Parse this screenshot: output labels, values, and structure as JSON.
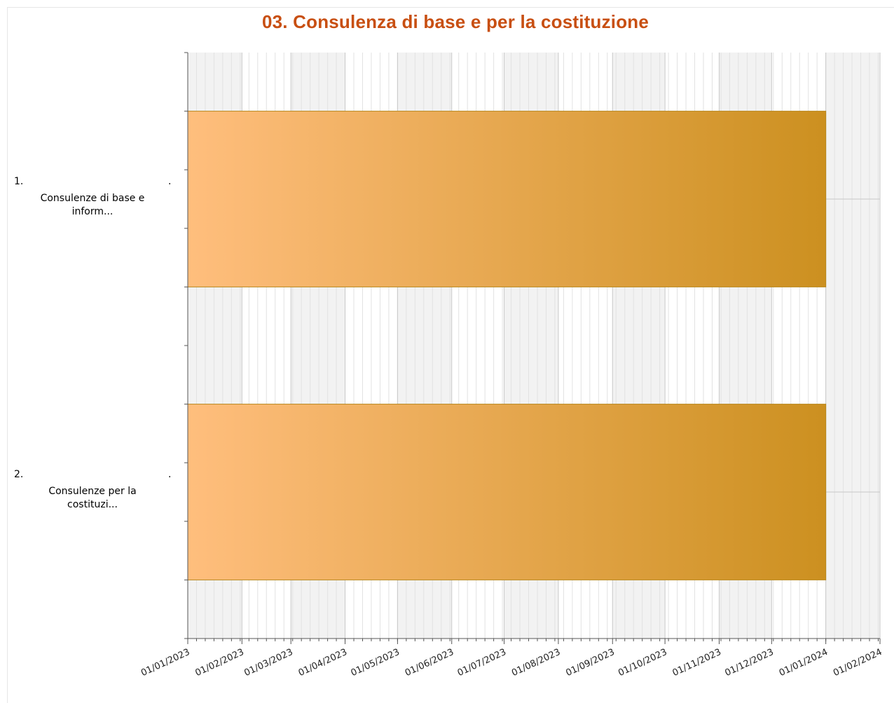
{
  "chart_data": {
    "type": "bar",
    "orientation": "horizontal",
    "chart_style": "gantt",
    "title": "03. Consulenza di base e per la costituzione",
    "x_axis": {
      "type": "date",
      "range": [
        "2023-01-01",
        "2024-02-01"
      ],
      "tick_labels": [
        "01/01/2023",
        "01/02/2023",
        "01/03/2023",
        "01/04/2023",
        "01/05/2023",
        "01/06/2023",
        "01/07/2023",
        "01/08/2023",
        "01/09/2023",
        "01/10/2023",
        "01/11/2023",
        "01/12/2023",
        "01/01/2024",
        "01/02/2024"
      ],
      "tick_dates": [
        "2023-01-01",
        "2023-02-01",
        "2023-03-01",
        "2023-04-01",
        "2023-05-01",
        "2023-06-01",
        "2023-07-01",
        "2023-08-01",
        "2023-09-01",
        "2023-10-01",
        "2023-11-01",
        "2023-12-01",
        "2024-01-01",
        "2024-02-01"
      ]
    },
    "categories": [
      {
        "index": "1.",
        "label_line1": "Consulenze di base e",
        "label_line2": "inform...",
        "trailing": "."
      },
      {
        "index": "2.",
        "label_line1": "Consulenze per la",
        "label_line2": "costituzi...",
        "trailing": "."
      }
    ],
    "bars": [
      {
        "start": "2023-01-01",
        "end": "2024-01-01"
      },
      {
        "start": "2023-01-01",
        "end": "2024-01-01"
      }
    ],
    "colors": {
      "bar_start": "#ffbe7d",
      "bar_end": "#cc9020",
      "bar_border": "#b8861a",
      "title": "#c84f12",
      "band_shaded": "#f2f2f2",
      "grid_minor": "#e2e2e2",
      "grid_major": "#c8c8c8",
      "axis": "#555555"
    },
    "grid": true,
    "legend": "none"
  }
}
